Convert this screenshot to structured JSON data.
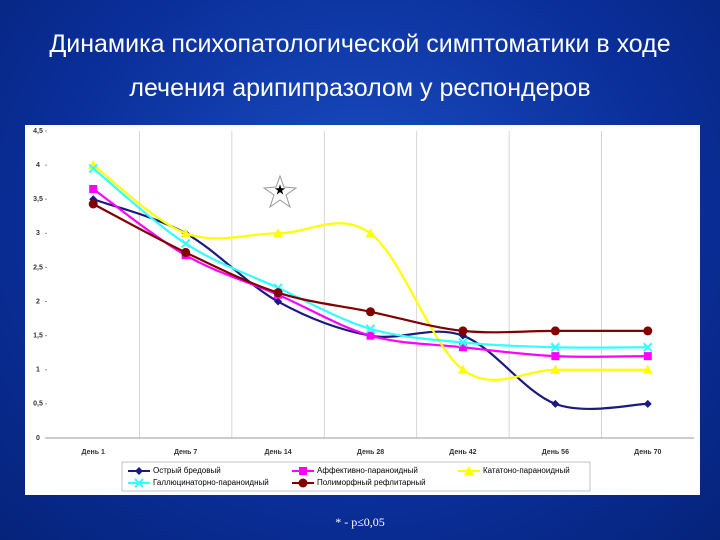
{
  "chart_data": {
    "type": "line",
    "title": "Динамика психопатологической симптоматики в ходе лечения арипипразолом у респондеров",
    "categories": [
      "День 1",
      "День 7",
      "День 14",
      "День 28",
      "День 42",
      "День 56",
      "День 70"
    ],
    "series": [
      {
        "name": "Острый бредовый",
        "color": "#1a1a80",
        "marker": "diamond",
        "values": [
          3.5,
          3.0,
          2.0,
          1.5,
          1.5,
          0.5,
          0.5
        ]
      },
      {
        "name": "Аффективно-параноидный",
        "color": "#ff00ff",
        "marker": "square",
        "values": [
          3.65,
          2.68,
          2.1,
          1.5,
          1.33,
          1.2,
          1.2
        ]
      },
      {
        "name": "Кататоно-параноидный",
        "color": "#ffff00",
        "marker": "triangle",
        "values": [
          4.0,
          3.0,
          3.0,
          3.0,
          1.0,
          1.0,
          1.0
        ]
      },
      {
        "name": "Галлюцинаторно-параноидный",
        "color": "#33ffff",
        "marker": "cross",
        "values": [
          3.95,
          2.85,
          2.2,
          1.6,
          1.4,
          1.33,
          1.33
        ]
      },
      {
        "name": "Полиморфный рефлитарный",
        "color": "#800000",
        "marker": "circle",
        "values": [
          3.43,
          2.72,
          2.13,
          1.85,
          1.57,
          1.57,
          1.57
        ]
      }
    ],
    "ylim": [
      0,
      4.5
    ],
    "yticks": [
      0,
      {
        "value": 0.5,
        "label": "0,5"
      },
      1,
      {
        "value": 1.5,
        "label": "1,5"
      },
      2,
      {
        "value": 2.5,
        "label": "2,5"
      },
      3,
      {
        "value": 3.5,
        "label": "3,5"
      },
      4,
      {
        "value": 4.5,
        "label": "4,5"
      }
    ],
    "grid": true,
    "legend": "bottom",
    "footnote": "* - p≤0,05"
  }
}
